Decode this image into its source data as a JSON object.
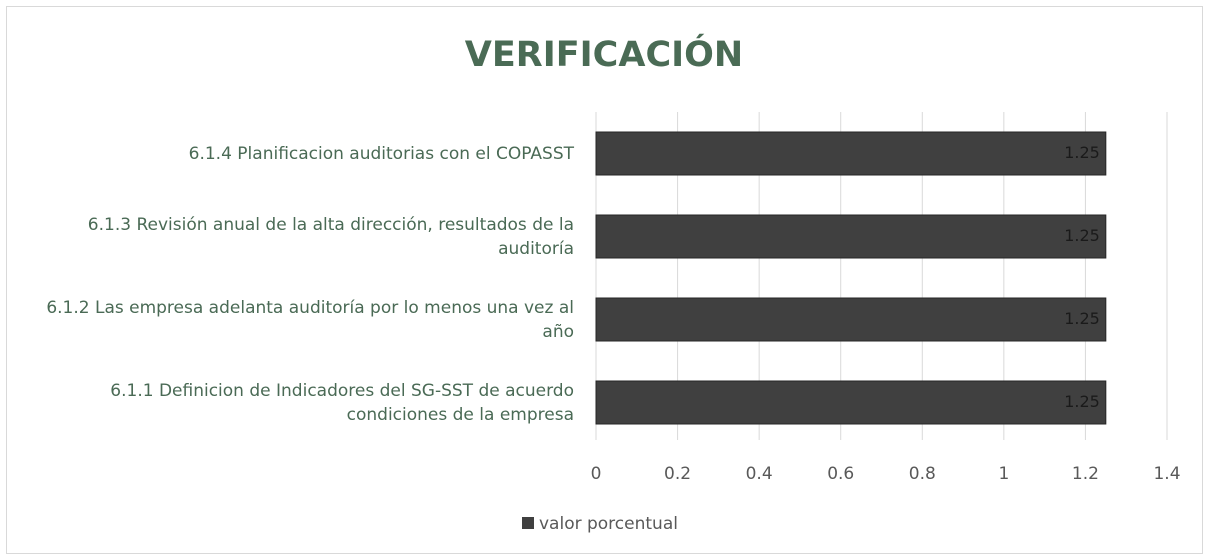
{
  "chart_data": {
    "type": "barh",
    "title": "VERIFICACIÓN",
    "categories": [
      "6.1.4 Planificacion auditorias con el COPASST",
      "6.1.3 Revisión anual de la alta dirección, resultados de la auditoría",
      "6.1.2 Las empresa adelanta auditoría por lo menos una vez al año",
      "6.1.1 Definicion de Indicadores del SG-SST de acuerdo condiciones de la empresa"
    ],
    "series": [
      {
        "name": "valor porcentual",
        "color": "#404040",
        "values": [
          1.25,
          1.25,
          1.25,
          1.25
        ]
      }
    ],
    "xlim": [
      0,
      1.4
    ],
    "xticks": [
      0,
      0.2,
      0.4,
      0.6,
      0.8,
      1,
      1.2,
      1.4
    ],
    "grid": true,
    "legend": "bottom"
  }
}
